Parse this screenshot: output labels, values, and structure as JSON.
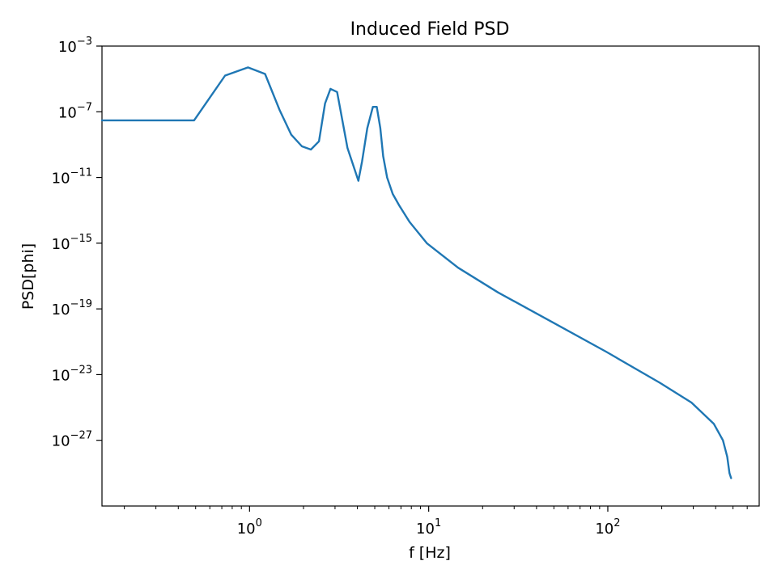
{
  "chart_data": {
    "type": "line",
    "title": "Induced Field PSD",
    "xlabel": "f [Hz]",
    "ylabel": "PSD[phi]",
    "x_scale": "log",
    "y_scale": "log",
    "xlim": [
      0.15,
      700
    ],
    "ylim": [
      1e-31,
      0.001
    ],
    "grid": false,
    "x_ticks": [
      {
        "value": 1,
        "base": "10",
        "exp": "0"
      },
      {
        "value": 10,
        "base": "10",
        "exp": "1"
      },
      {
        "value": 100,
        "base": "10",
        "exp": "2"
      }
    ],
    "y_ticks": [
      {
        "value": 0.001,
        "base": "10",
        "exp": "−3"
      },
      {
        "value": 1e-07,
        "base": "10",
        "exp": "−7"
      },
      {
        "value": 1e-11,
        "base": "10",
        "exp": "−11"
      },
      {
        "value": 1e-15,
        "base": "10",
        "exp": "−15"
      },
      {
        "value": 1e-19,
        "base": "10",
        "exp": "−19"
      },
      {
        "value": 1e-23,
        "base": "10",
        "exp": "−23"
      },
      {
        "value": 1e-27,
        "base": "10",
        "exp": "−27"
      }
    ],
    "series": [
      {
        "color": "#1f77b4",
        "x": [
          0.15,
          0.49,
          0.73,
          0.98,
          1.22,
          1.47,
          1.71,
          1.96,
          2.2,
          2.44,
          2.64,
          2.83,
          3.08,
          3.52,
          4.05,
          4.25,
          4.54,
          4.88,
          5.13,
          5.37,
          5.57,
          5.86,
          6.3,
          6.84,
          7.81,
          9.77,
          14.6,
          24.4,
          48.8,
          97.7,
          195,
          293,
          391,
          439,
          464,
          478,
          488
        ],
        "y": [
          3e-08,
          3e-08,
          1.6e-05,
          5e-05,
          2e-05,
          1.3e-07,
          4e-09,
          7.9e-10,
          5e-10,
          1.6e-09,
          3.2e-07,
          2.5e-06,
          1.6e-06,
          6.3e-10,
          6.3e-12,
          1e-10,
          1e-08,
          2e-07,
          2e-07,
          1e-08,
          2e-10,
          1e-11,
          1e-12,
          2e-13,
          2e-14,
          1e-15,
          3.2e-17,
          1e-18,
          1.6e-20,
          2.5e-22,
          3.2e-24,
          2e-25,
          1e-26,
          1e-27,
          1e-28,
          1e-29,
          5e-30
        ]
      }
    ]
  }
}
